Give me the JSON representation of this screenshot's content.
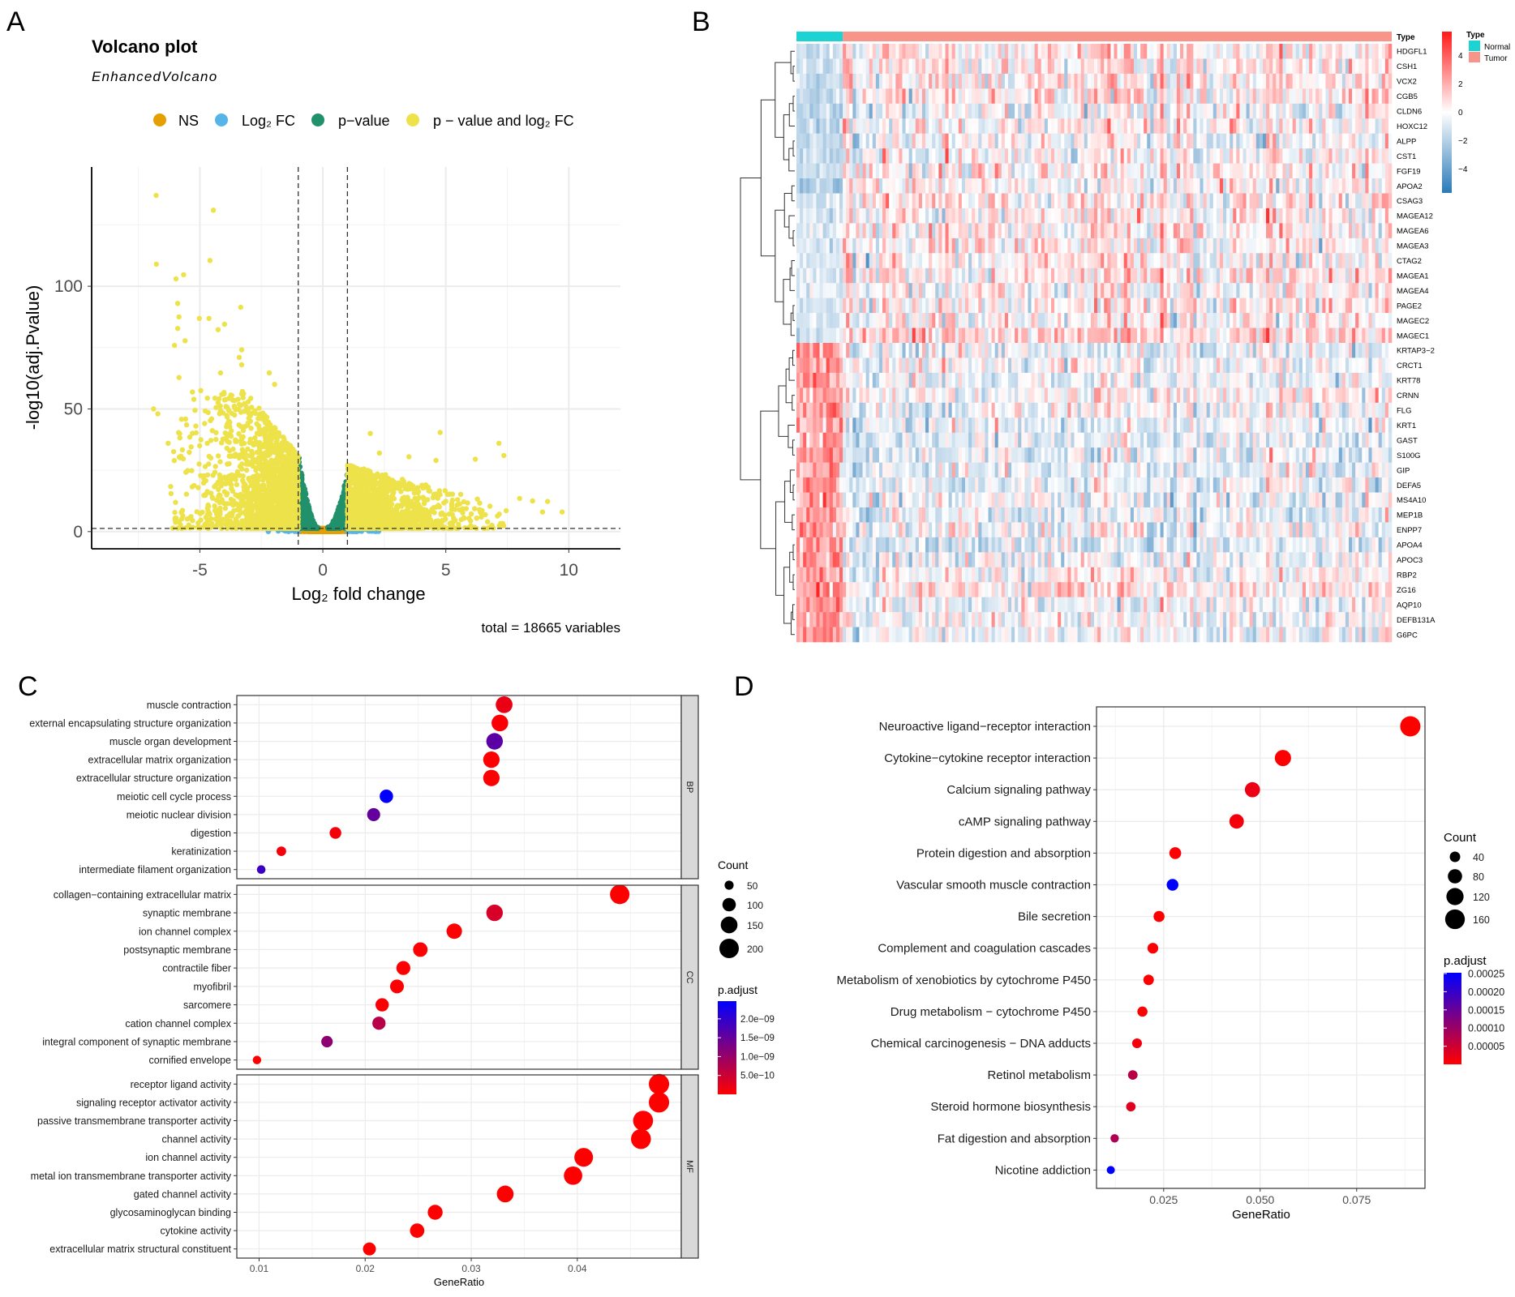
{
  "panel_labels": {
    "a": "A",
    "b": "B",
    "c": "C",
    "d": "D"
  },
  "chart_data": [
    {
      "type": "scatter",
      "title": "Volcano plot",
      "subtitle": "EnhancedVolcano",
      "xlabel": "Log₂ fold change",
      "ylabel": "-log10(adj.Pvalue)",
      "caption": "total = 18665 variables",
      "xlim": [
        -9.4,
        12.1
      ],
      "ylim": [
        -7,
        148.6
      ],
      "xticks": [
        -5,
        0,
        5,
        10
      ],
      "yticks": [
        0,
        50,
        100
      ],
      "grid": true,
      "legend_position": "top",
      "cutoffs": {
        "log2fc": 1,
        "neglog10_p": 1.3
      },
      "legend": [
        {
          "label": "NS",
          "color": "#E69F00"
        },
        {
          "label": "Log₂ FC",
          "color": "#56B4E9"
        },
        {
          "label": "p−value",
          "color": "#21916B"
        },
        {
          "label": "p − value and log₂ FC",
          "color": "#EEE24A"
        }
      ],
      "highlighted_points": [
        {
          "x": -6.78,
          "y": 137
        },
        {
          "x": -4.45,
          "y": 131
        },
        {
          "x": -6.77,
          "y": 109
        },
        {
          "x": -4.59,
          "y": 110.5
        },
        {
          "x": -5.97,
          "y": 103
        },
        {
          "x": -5.66,
          "y": 104.7
        },
        {
          "x": -5.9,
          "y": 93
        },
        {
          "x": -5.85,
          "y": 87.5
        },
        {
          "x": -5.9,
          "y": 82.8
        },
        {
          "x": -5.02,
          "y": 86.9
        },
        {
          "x": -4.63,
          "y": 86.9
        },
        {
          "x": -4.0,
          "y": 84.5
        },
        {
          "x": -4.26,
          "y": 82.3
        },
        {
          "x": -3.34,
          "y": 91.4
        },
        {
          "x": -6.03,
          "y": 75.9
        },
        {
          "x": -5.6,
          "y": 77.8
        },
        {
          "x": -3.3,
          "y": 74.1
        },
        {
          "x": -3.4,
          "y": 71
        },
        {
          "x": -3.3,
          "y": 68
        },
        {
          "x": -5.85,
          "y": 62.8
        },
        {
          "x": -2.18,
          "y": 64.7
        },
        {
          "x": -4.16,
          "y": 64.7
        },
        {
          "x": -1.96,
          "y": 60
        },
        {
          "x": -6.88,
          "y": 50
        },
        {
          "x": -6.71,
          "y": 48
        },
        {
          "x": -6.29,
          "y": 36
        },
        {
          "x": -4.96,
          "y": 57.5
        },
        {
          "x": -5.3,
          "y": 56.9
        },
        {
          "x": 4.77,
          "y": 40.4
        },
        {
          "x": 1.93,
          "y": 40
        },
        {
          "x": 7.16,
          "y": 36
        },
        {
          "x": 7.36,
          "y": 31
        },
        {
          "x": 9.73,
          "y": 8
        },
        {
          "x": 9.14,
          "y": 12.3
        },
        {
          "x": 8.53,
          "y": 12.5
        },
        {
          "x": 8.93,
          "y": 8
        },
        {
          "x": 8.0,
          "y": 13.5
        },
        {
          "x": 6.2,
          "y": 29.5
        },
        {
          "x": 4.6,
          "y": 29
        },
        {
          "x": 2.3,
          "y": 32
        },
        {
          "x": 3.5,
          "y": 30.5
        }
      ]
    },
    {
      "type": "heatmap",
      "annotation_title": "Type",
      "column_annotation": [
        {
          "label": "Normal",
          "color": "#1CD3D3"
        },
        {
          "label": "Tumor",
          "color": "#F8958B"
        }
      ],
      "color_scale": {
        "ticks": [
          4,
          2,
          0,
          -2,
          -4
        ],
        "tick_labels": [
          "4",
          "2",
          "0",
          "−2",
          "−4"
        ],
        "low": "#2A7AB8",
        "mid": "#FFFFFF",
        "high": "#FF1A1A",
        "range": [
          -5.7,
          5.7
        ]
      },
      "row_dendrogram": true,
      "rows": [
        "HDGFL1",
        "CSH1",
        "VCX2",
        "CGB5",
        "CLDN6",
        "HOXC12",
        "ALPP",
        "CST1",
        "FGF19",
        "APOA2",
        "CSAG3",
        "MAGEA12",
        "MAGEA6",
        "MAGEA3",
        "CTAG2",
        "MAGEA1",
        "MAGEA4",
        "PAGE2",
        "MAGEC2",
        "MAGEC1",
        "KRTAP3−2",
        "CRCT1",
        "KRT78",
        "CRNN",
        "FLG",
        "KRT1",
        "GAST",
        "S100G",
        "GIP",
        "DEFA5",
        "MS4A10",
        "MEP1B",
        "ENPP7",
        "APOA4",
        "APOC3",
        "RBP2",
        "ZG16",
        "AQP10",
        "DEFB131A",
        "G6PC"
      ]
    },
    {
      "type": "scatter",
      "xlabel": "GeneRatio",
      "xlim": [
        0.0079,
        0.0498
      ],
      "xticks": [
        0.01,
        0.02,
        0.03,
        0.04
      ],
      "xtick_labels": [
        "0.01",
        "0.02",
        "0.03",
        "0.04"
      ],
      "grid": true,
      "size_legend": {
        "title": "Count",
        "values": [
          50,
          100,
          150,
          200
        ],
        "labels": [
          "50",
          "100",
          "150",
          "200"
        ]
      },
      "color_legend": {
        "title": "p.adjust",
        "range": [
          0,
          2.47e-09
        ],
        "ticks": [
          2e-09,
          1.5e-09,
          1e-09,
          5e-10
        ],
        "tick_labels": [
          "2.0e−09",
          "1.5e−09",
          "1.0e−09",
          "5.0e−10"
        ],
        "low_color": "#FF0000",
        "high_color": "#0000FF"
      },
      "facets": [
        {
          "label": "BP",
          "terms": [
            {
              "term": "muscle contraction",
              "gene_ratio": 0.0331,
              "count": 151,
              "p_adjust": 2e-10
            },
            {
              "term": "external encapsulating structure organization",
              "gene_ratio": 0.0327,
              "count": 149,
              "p_adjust": 5e-11
            },
            {
              "term": "muscle organ development",
              "gene_ratio": 0.0322,
              "count": 147,
              "p_adjust": 1.6e-09
            },
            {
              "term": "extracellular matrix organization",
              "gene_ratio": 0.0319,
              "count": 145,
              "p_adjust": 1e-11
            },
            {
              "term": "extracellular structure organization",
              "gene_ratio": 0.0319,
              "count": 145,
              "p_adjust": 1e-11
            },
            {
              "term": "meiotic cell cycle process",
              "gene_ratio": 0.022,
              "count": 100,
              "p_adjust": 2.45e-09
            },
            {
              "term": "meiotic nuclear division",
              "gene_ratio": 0.0208,
              "count": 95,
              "p_adjust": 1.5e-09
            },
            {
              "term": "digestion",
              "gene_ratio": 0.0172,
              "count": 78,
              "p_adjust": 1e-10
            },
            {
              "term": "keratinization",
              "gene_ratio": 0.0121,
              "count": 55,
              "p_adjust": 1e-10
            },
            {
              "term": "intermediate filament organization",
              "gene_ratio": 0.0102,
              "count": 46,
              "p_adjust": 1.9e-09
            }
          ]
        },
        {
          "label": "CC",
          "terms": [
            {
              "term": "collagen−containing extracellular matrix",
              "gene_ratio": 0.044,
              "count": 200,
              "p_adjust": 1e-12
            },
            {
              "term": "synaptic membrane",
              "gene_ratio": 0.0322,
              "count": 147,
              "p_adjust": 4e-10
            },
            {
              "term": "ion channel complex",
              "gene_ratio": 0.0284,
              "count": 129,
              "p_adjust": 1e-11
            },
            {
              "term": "postsynaptic membrane",
              "gene_ratio": 0.0252,
              "count": 115,
              "p_adjust": 1e-11
            },
            {
              "term": "contractile fiber",
              "gene_ratio": 0.0236,
              "count": 107,
              "p_adjust": 1e-11
            },
            {
              "term": "myofibril",
              "gene_ratio": 0.023,
              "count": 105,
              "p_adjust": 1e-11
            },
            {
              "term": "sarcomere",
              "gene_ratio": 0.0216,
              "count": 98,
              "p_adjust": 5e-11
            },
            {
              "term": "cation channel complex",
              "gene_ratio": 0.0213,
              "count": 97,
              "p_adjust": 7e-10
            },
            {
              "term": "integral component of synaptic membrane",
              "gene_ratio": 0.0164,
              "count": 75,
              "p_adjust": 1.1e-09
            },
            {
              "term": "cornified envelope",
              "gene_ratio": 0.0098,
              "count": 45,
              "p_adjust": 1e-11
            }
          ]
        },
        {
          "label": "MF",
          "terms": [
            {
              "term": "receptor ligand activity",
              "gene_ratio": 0.0477,
              "count": 217,
              "p_adjust": 1e-12
            },
            {
              "term": "signaling receptor activator activity",
              "gene_ratio": 0.0477,
              "count": 217,
              "p_adjust": 1e-12
            },
            {
              "term": "passive transmembrane transporter activity",
              "gene_ratio": 0.0462,
              "count": 210,
              "p_adjust": 1e-12
            },
            {
              "term": "channel activity",
              "gene_ratio": 0.046,
              "count": 209,
              "p_adjust": 1e-12
            },
            {
              "term": "ion channel activity",
              "gene_ratio": 0.0406,
              "count": 185,
              "p_adjust": 1e-12
            },
            {
              "term": "metal ion transmembrane transporter activity",
              "gene_ratio": 0.0396,
              "count": 180,
              "p_adjust": 1e-12
            },
            {
              "term": "gated channel activity",
              "gene_ratio": 0.0332,
              "count": 151,
              "p_adjust": 1e-12
            },
            {
              "term": "glycosaminoglycan binding",
              "gene_ratio": 0.0266,
              "count": 121,
              "p_adjust": 1e-12
            },
            {
              "term": "cytokine activity",
              "gene_ratio": 0.0249,
              "count": 113,
              "p_adjust": 1e-12
            },
            {
              "term": "extracellular matrix structural constituent",
              "gene_ratio": 0.0204,
              "count": 93,
              "p_adjust": 1e-12
            }
          ]
        }
      ]
    },
    {
      "type": "scatter",
      "xlabel": "GeneRatio",
      "xlim": [
        0.0076,
        0.0927
      ],
      "xticks": [
        0.025,
        0.05,
        0.075
      ],
      "xtick_labels": [
        "0.025",
        "0.050",
        "0.075"
      ],
      "grid": true,
      "size_legend": {
        "title": "Count",
        "values": [
          40,
          80,
          120,
          160
        ],
        "labels": [
          "40",
          "80",
          "120",
          "160"
        ]
      },
      "color_legend": {
        "title": "p.adjust",
        "range": [
          0,
          0.00025
        ],
        "ticks": [
          0.00025,
          0.0002,
          0.00015,
          0.0001,
          5e-05
        ],
        "tick_labels": [
          "0.00025",
          "0.00020",
          "0.00015",
          "0.00010",
          "0.00005"
        ],
        "low_color": "#FF0000",
        "high_color": "#0000FF"
      },
      "terms": [
        {
          "term": "Neuroactive ligand−receptor interaction",
          "gene_ratio": 0.0889,
          "count": 169,
          "p_adjust": 1e-09
        },
        {
          "term": "Cytokine−cytokine receptor interaction",
          "gene_ratio": 0.0559,
          "count": 106,
          "p_adjust": 2e-06
        },
        {
          "term": "Calcium signaling pathway",
          "gene_ratio": 0.048,
          "count": 91,
          "p_adjust": 2e-05
        },
        {
          "term": "cAMP signaling pathway",
          "gene_ratio": 0.0439,
          "count": 83,
          "p_adjust": 1e-05
        },
        {
          "term": "Protein digestion and absorption",
          "gene_ratio": 0.028,
          "count": 53,
          "p_adjust": 1e-06
        },
        {
          "term": "Vascular smooth muscle contraction",
          "gene_ratio": 0.0273,
          "count": 52,
          "p_adjust": 0.00025
        },
        {
          "term": "Bile secretion",
          "gene_ratio": 0.0238,
          "count": 45,
          "p_adjust": 1e-06
        },
        {
          "term": "Complement and coagulation cascades",
          "gene_ratio": 0.0222,
          "count": 42,
          "p_adjust": 1e-06
        },
        {
          "term": "Metabolism of xenobiotics by cytochrome P450",
          "gene_ratio": 0.0211,
          "count": 40,
          "p_adjust": 1e-06
        },
        {
          "term": "Drug metabolism − cytochrome P450",
          "gene_ratio": 0.0195,
          "count": 37,
          "p_adjust": 2e-06
        },
        {
          "term": "Chemical carcinogenesis − DNA adducts",
          "gene_ratio": 0.0181,
          "count": 34,
          "p_adjust": 1e-05
        },
        {
          "term": "Retinol metabolism",
          "gene_ratio": 0.017,
          "count": 32,
          "p_adjust": 7e-05
        },
        {
          "term": "Steroid hormone biosynthesis",
          "gene_ratio": 0.0165,
          "count": 31,
          "p_adjust": 3e-05
        },
        {
          "term": "Fat digestion and absorption",
          "gene_ratio": 0.0123,
          "count": 23,
          "p_adjust": 8e-05
        },
        {
          "term": "Nicotine addiction",
          "gene_ratio": 0.0113,
          "count": 21,
          "p_adjust": 0.00025
        }
      ]
    }
  ]
}
